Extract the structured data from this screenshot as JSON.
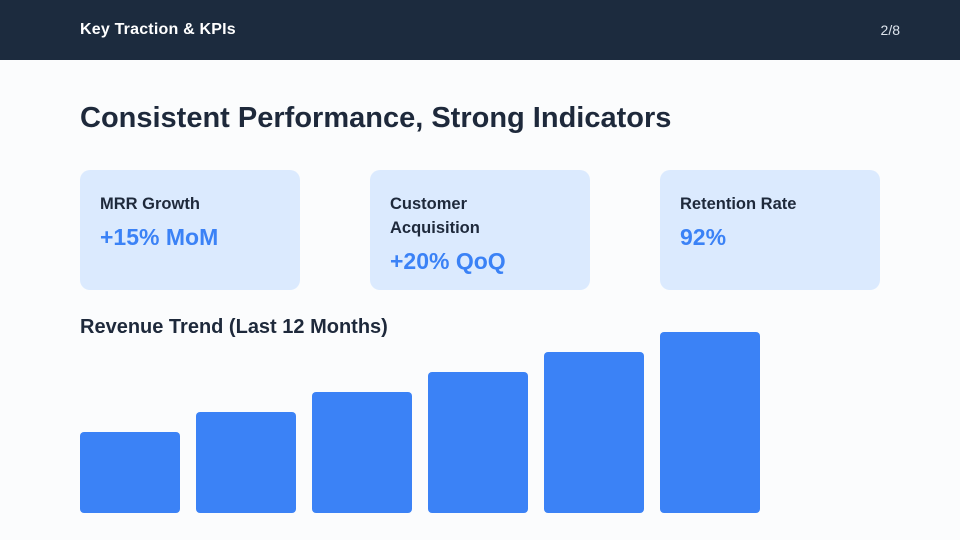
{
  "slide": {
    "header": {
      "title": "Key Traction & KPIs",
      "page_indicator": "2/8"
    },
    "title": "Consistent Performance, Strong Indicators"
  },
  "kpis": [
    {
      "label": "MRR Growth",
      "value": "+15% MoM"
    },
    {
      "label": "Customer Acquisition",
      "value": "+20% QoQ"
    },
    {
      "label": "Retention Rate",
      "value": "92%"
    }
  ],
  "chart_data": {
    "type": "bar",
    "title": "Revenue Trend (Last 12 Months)",
    "categories": [
      "",
      "",
      "",
      "",
      "",
      ""
    ],
    "values": [
      45,
      56,
      67,
      78,
      89,
      100
    ],
    "ylim": [
      0,
      100
    ],
    "xlabel": "",
    "ylabel": "",
    "grid": false,
    "legend": false
  },
  "colors": {
    "header_bg": "#1c2b3e",
    "card_bg": "#dbeafe",
    "accent_blue": "#3b82f6",
    "bar_blue": "#3b82f6",
    "heading_text": "#1e293b"
  }
}
